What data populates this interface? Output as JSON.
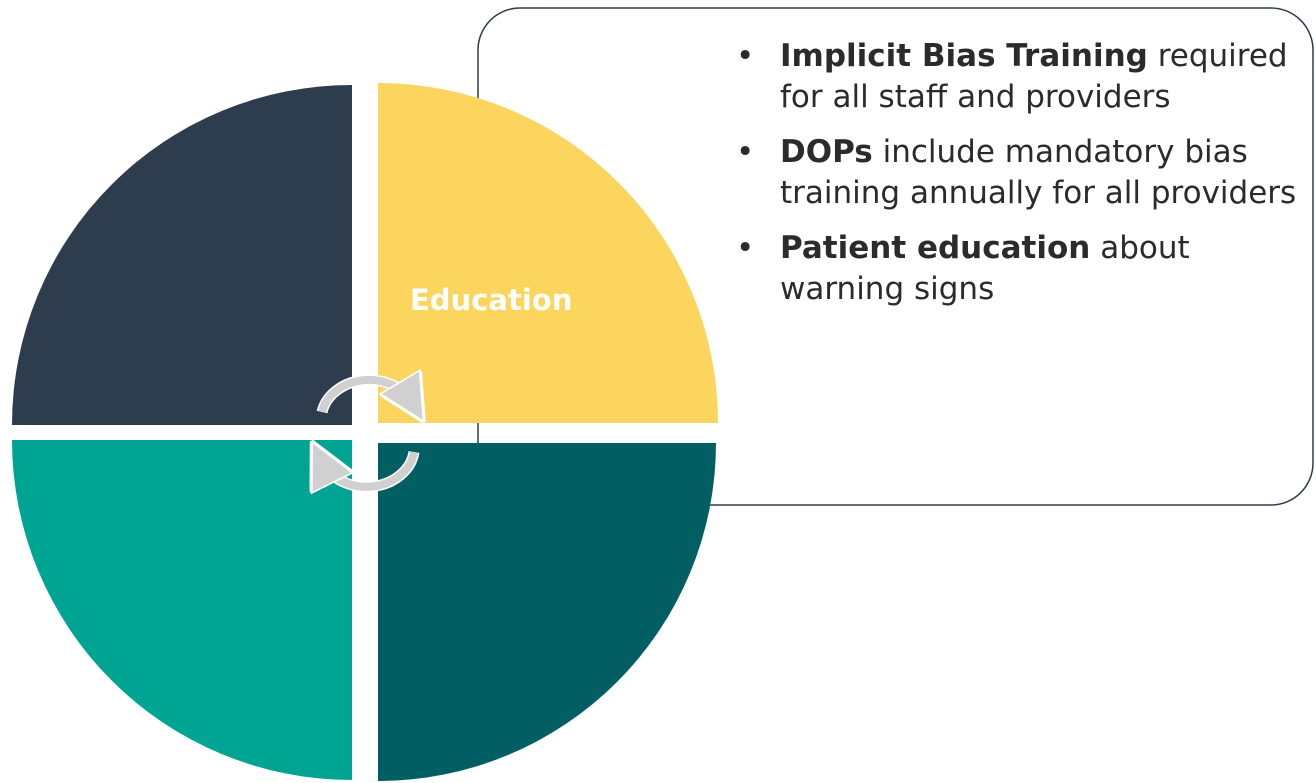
{
  "diagram": {
    "quadrant_label": "Education",
    "bullets": [
      {
        "bold": "Implicit Bias Training",
        "text": "required for all staff and providers"
      },
      {
        "bold": "DOPs",
        "text": "include mandatory bias training annually for all providers"
      },
      {
        "bold": "Patient education",
        "text": "about warning signs"
      }
    ]
  }
}
